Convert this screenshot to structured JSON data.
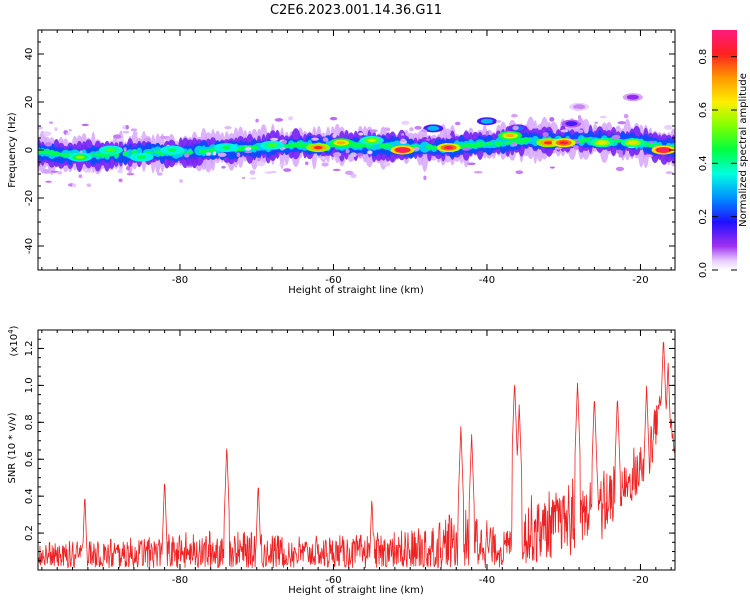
{
  "title": "C2E6.2023.001.14.36.G11",
  "chart_data": [
    {
      "type": "heatmap",
      "xlabel": "Height of straight line (km)",
      "ylabel": "Frequency (Hz)",
      "xlim": [
        -98.5,
        -15.5
      ],
      "ylim": [
        -50,
        50
      ],
      "xticks": [
        -80,
        -60,
        -40,
        -20
      ],
      "xtick_labels": [
        "-80",
        "-60",
        "-40",
        "-20"
      ],
      "yticks": [
        -40,
        -20,
        0,
        20,
        40
      ],
      "ytick_labels": [
        "-40",
        "-20",
        "0",
        "20",
        "40"
      ],
      "colorbar": {
        "label": "Normalized spectral amplitude",
        "range": [
          0,
          0.9
        ],
        "ticks": [
          0.0,
          0.2,
          0.4,
          0.6,
          0.8
        ],
        "tick_labels": [
          "0.0",
          "0.2",
          "0.4",
          "0.6",
          "0.8"
        ]
      },
      "ridge": {
        "description_values": "center frequency of the signal band vs height",
        "x": [
          -98,
          -95,
          -90,
          -85,
          -80,
          -75,
          -70,
          -65,
          -60,
          -55,
          -50,
          -45,
          -42,
          -38,
          -35,
          -30,
          -25,
          -20,
          -17,
          -16
        ],
        "y": [
          -1,
          -2,
          -2,
          -1,
          -1,
          0,
          1,
          2,
          2,
          2,
          1,
          1,
          2,
          3,
          4,
          4,
          4,
          3,
          1,
          1
        ],
        "hotspots": [
          {
            "x": -93,
            "y": -3,
            "amp": 0.55
          },
          {
            "x": -89,
            "y": 0,
            "amp": 0.5
          },
          {
            "x": -85,
            "y": -3,
            "amp": 0.45
          },
          {
            "x": -81,
            "y": 0,
            "amp": 0.45
          },
          {
            "x": -74,
            "y": 1,
            "amp": 0.45
          },
          {
            "x": -68,
            "y": 2,
            "amp": 0.5
          },
          {
            "x": -62,
            "y": 1,
            "amp": 0.8
          },
          {
            "x": -59,
            "y": 3,
            "amp": 0.7
          },
          {
            "x": -55,
            "y": 4,
            "amp": 0.6
          },
          {
            "x": -51,
            "y": 0,
            "amp": 0.9
          },
          {
            "x": -45,
            "y": 1,
            "amp": 0.85
          },
          {
            "x": -37,
            "y": 6,
            "amp": 0.7
          },
          {
            "x": -32,
            "y": 3,
            "amp": 0.8
          },
          {
            "x": -30,
            "y": 3,
            "amp": 0.85
          },
          {
            "x": -25,
            "y": 3,
            "amp": 0.65
          },
          {
            "x": -21,
            "y": 3,
            "amp": 0.65
          },
          {
            "x": -17,
            "y": 0,
            "amp": 0.9
          }
        ],
        "secondary": [
          {
            "x": -47,
            "y": 9,
            "amp": 0.3
          },
          {
            "x": -40,
            "y": 12,
            "amp": 0.3
          },
          {
            "x": -36,
            "y": 9,
            "amp": 0.25
          },
          {
            "x": -29,
            "y": 11,
            "amp": 0.15
          },
          {
            "x": -21,
            "y": 22,
            "amp": 0.1
          },
          {
            "x": -28,
            "y": 18,
            "amp": 0.06
          }
        ]
      }
    },
    {
      "type": "line",
      "xlabel": "Height of straight line (km)",
      "ylabel": "SNR (10 * v/v)",
      "y_multiplier": "(x10",
      "y_multiplier_exp": "4",
      "y_multiplier_close": ")",
      "xlim": [
        -98.5,
        -15.5
      ],
      "ylim": [
        0,
        1.3
      ],
      "xticks": [
        -80,
        -60,
        -40,
        -20
      ],
      "xtick_labels": [
        "-80",
        "-60",
        "-40",
        "-20"
      ],
      "yticks": [
        0.2,
        0.4,
        0.6,
        0.8,
        1.0,
        1.2
      ],
      "ytick_labels": [
        "0.2",
        "0.4",
        "0.6",
        "0.8",
        "1.0",
        "1.2"
      ],
      "color": "#ee2222",
      "envelope": {
        "x": [
          -98.5,
          -95,
          -92,
          -88,
          -84,
          -80,
          -76,
          -72,
          -68,
          -64,
          -60,
          -56,
          -52,
          -49,
          -46,
          -44,
          -42,
          -40,
          -38,
          -36.5,
          -35,
          -33,
          -31,
          -29,
          -27,
          -25,
          -23,
          -21,
          -19,
          -17.5,
          -16.5,
          -15.5
        ],
        "base": [
          0.08,
          0.07,
          0.08,
          0.08,
          0.09,
          0.09,
          0.1,
          0.1,
          0.1,
          0.09,
          0.09,
          0.09,
          0.09,
          0.1,
          0.13,
          0.16,
          0.16,
          0.14,
          0.1,
          0.16,
          0.2,
          0.22,
          0.25,
          0.28,
          0.3,
          0.35,
          0.4,
          0.5,
          0.6,
          0.9,
          0.85,
          0.66
        ],
        "amp": [
          0.07,
          0.07,
          0.08,
          0.08,
          0.09,
          0.09,
          0.1,
          0.1,
          0.09,
          0.08,
          0.08,
          0.09,
          0.1,
          0.12,
          0.14,
          0.16,
          0.16,
          0.12,
          0.08,
          0.12,
          0.16,
          0.16,
          0.18,
          0.18,
          0.18,
          0.18,
          0.15,
          0.14,
          0.14,
          0.1,
          0.08,
          0.08
        ]
      },
      "spikes": [
        {
          "x": -92.4,
          "y": 0.42
        },
        {
          "x": -82.0,
          "y": 0.5
        },
        {
          "x": -73.9,
          "y": 0.68
        },
        {
          "x": -69.8,
          "y": 0.48
        },
        {
          "x": -55.0,
          "y": 0.4
        },
        {
          "x": -43.4,
          "y": 0.78
        },
        {
          "x": -42.0,
          "y": 0.74
        },
        {
          "x": -36.4,
          "y": 1.03
        },
        {
          "x": -35.8,
          "y": 0.9
        },
        {
          "x": -28.2,
          "y": 1.02
        },
        {
          "x": -26.0,
          "y": 0.95
        },
        {
          "x": -23.0,
          "y": 0.95
        },
        {
          "x": -19.2,
          "y": 1.0
        },
        {
          "x": -17.0,
          "y": 1.27
        },
        {
          "x": -16.4,
          "y": 1.13
        }
      ]
    }
  ]
}
